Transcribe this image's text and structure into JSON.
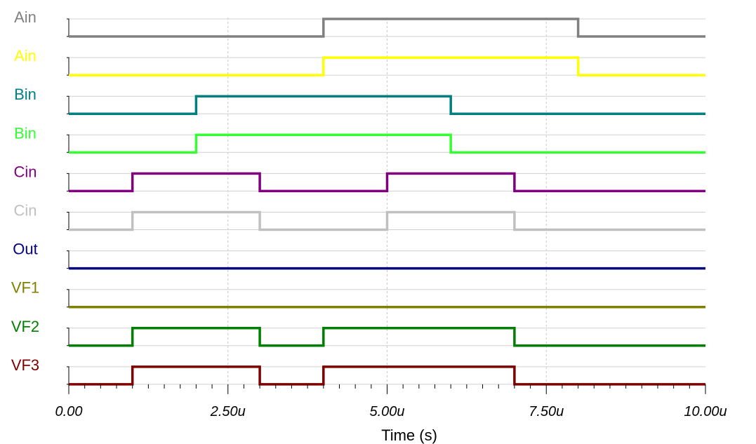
{
  "chart_data": {
    "type": "line",
    "title": "",
    "xlabel": "Time (s)",
    "ylabel": "",
    "x_unit": "us",
    "xlim": [
      0,
      10
    ],
    "x_ticks": [
      0,
      2.5,
      5,
      7.5,
      10
    ],
    "x_tick_labels": [
      "0.00",
      "2.50u",
      "5.00u",
      "7.50u",
      "10.00u"
    ],
    "series": [
      {
        "name": "Ain",
        "color": "#808080",
        "transitions": [
          4,
          8
        ]
      },
      {
        "name": "Ain",
        "color": "#ffff00",
        "transitions": [
          4,
          8
        ]
      },
      {
        "name": "Bin",
        "color": "#008080",
        "transitions": [
          2,
          6
        ]
      },
      {
        "name": "Bin",
        "color": "#33ff33",
        "transitions": [
          2,
          6
        ]
      },
      {
        "name": "Cin",
        "color": "#800080",
        "transitions": [
          1,
          3,
          5,
          7
        ]
      },
      {
        "name": "Cin",
        "color": "#c0c0c0",
        "transitions": [
          1,
          3,
          5,
          7
        ]
      },
      {
        "name": "Out",
        "color": "#000080",
        "transitions": []
      },
      {
        "name": "VF1",
        "color": "#808000",
        "transitions": []
      },
      {
        "name": "VF2",
        "color": "#008000",
        "transitions": [
          1,
          3,
          4,
          7
        ]
      },
      {
        "name": "VF3",
        "color": "#800000",
        "transitions": [
          1,
          3,
          4,
          7
        ]
      }
    ]
  }
}
